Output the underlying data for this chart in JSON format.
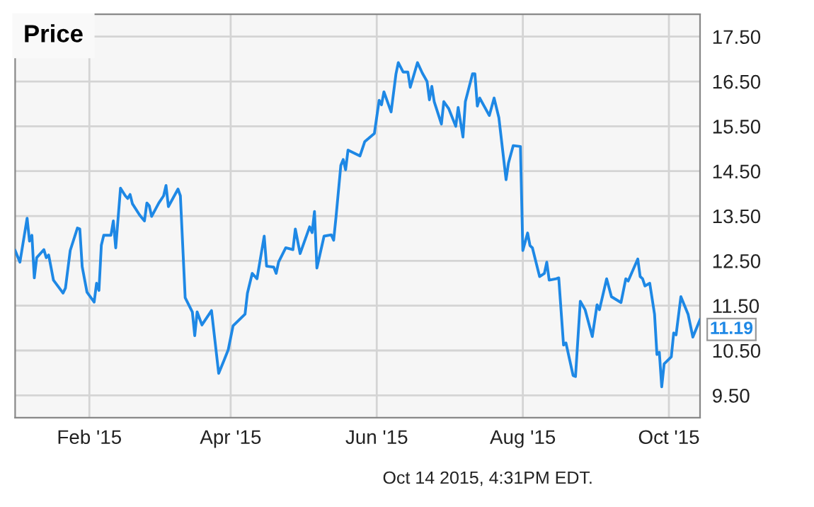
{
  "chart_data": {
    "type": "line",
    "title": "Price",
    "annotations": [
      "Oct 14 2015, 4:31PM EDT."
    ],
    "x": [
      "2015-01-01",
      "2015-01-03",
      "2015-01-06",
      "2015-01-07",
      "2015-01-08",
      "2015-01-09",
      "2015-01-10",
      "2015-01-13",
      "2015-01-14",
      "2015-01-15",
      "2015-01-17",
      "2015-01-21",
      "2015-01-22",
      "2015-01-24",
      "2015-01-27",
      "2015-01-28",
      "2015-01-29",
      "2015-01-31",
      "2015-02-03",
      "2015-02-04",
      "2015-02-05",
      "2015-02-06",
      "2015-02-07",
      "2015-02-10",
      "2015-02-11",
      "2015-02-12",
      "2015-02-14",
      "2015-02-16",
      "2015-02-17",
      "2015-02-18",
      "2015-02-19",
      "2015-02-22",
      "2015-02-24",
      "2015-02-25",
      "2015-02-26",
      "2015-02-27",
      "2015-03-02",
      "2015-03-04",
      "2015-03-05",
      "2015-03-06",
      "2015-03-10",
      "2015-03-11",
      "2015-03-13",
      "2015-03-16",
      "2015-03-17",
      "2015-03-18",
      "2015-03-20",
      "2015-03-24",
      "2015-03-27",
      "2015-03-29",
      "2015-03-31",
      "2015-04-02",
      "2015-04-07",
      "2015-04-08",
      "2015-04-10",
      "2015-04-12",
      "2015-04-15",
      "2015-04-16",
      "2015-04-19",
      "2015-04-20",
      "2015-04-21",
      "2015-04-24",
      "2015-04-27",
      "2015-04-28",
      "2015-04-30",
      "2015-05-04",
      "2015-05-05",
      "2015-05-06",
      "2015-05-07",
      "2015-05-10",
      "2015-05-13",
      "2015-05-14",
      "2015-05-15",
      "2015-05-17",
      "2015-05-18",
      "2015-05-19",
      "2015-05-20",
      "2015-05-25",
      "2015-05-27",
      "2015-05-31",
      "2015-06-02",
      "2015-06-03",
      "2015-06-04",
      "2015-06-07",
      "2015-06-09",
      "2015-06-10",
      "2015-06-12",
      "2015-06-14",
      "2015-06-15",
      "2015-06-18",
      "2015-06-20",
      "2015-06-22",
      "2015-06-23",
      "2015-06-24",
      "2015-06-25",
      "2015-06-28",
      "2015-06-29",
      "2015-07-01",
      "2015-07-04",
      "2015-07-05",
      "2015-07-07",
      "2015-07-08",
      "2015-07-11",
      "2015-07-12",
      "2015-07-13",
      "2015-07-14",
      "2015-07-18",
      "2015-07-20",
      "2015-07-22",
      "2015-07-25",
      "2015-07-26",
      "2015-07-28",
      "2015-07-31",
      "2015-08-01",
      "2015-08-03",
      "2015-08-04",
      "2015-08-05",
      "2015-08-08",
      "2015-08-10",
      "2015-08-11",
      "2015-08-12",
      "2015-08-15",
      "2015-08-16",
      "2015-08-18",
      "2015-08-19",
      "2015-08-22",
      "2015-08-23",
      "2015-08-25",
      "2015-08-27",
      "2015-08-30",
      "2015-09-01",
      "2015-09-02",
      "2015-09-05",
      "2015-09-07",
      "2015-09-11",
      "2015-09-13",
      "2015-09-14",
      "2015-09-18",
      "2015-09-19",
      "2015-09-20",
      "2015-09-21",
      "2015-09-23",
      "2015-09-25",
      "2015-09-26",
      "2015-09-27",
      "2015-09-28",
      "2015-09-29",
      "2015-10-02",
      "2015-10-03",
      "2015-10-04",
      "2015-10-06",
      "2015-10-09",
      "2015-10-11",
      "2015-10-14"
    ],
    "series": [
      {
        "color": "#1e88e5",
        "values": [
          12.73,
          12.47,
          13.45,
          12.94,
          13.07,
          12.12,
          12.57,
          12.75,
          12.57,
          12.63,
          12.07,
          11.78,
          11.89,
          12.73,
          13.23,
          13.21,
          12.37,
          11.8,
          11.58,
          12.0,
          11.84,
          12.85,
          13.07,
          13.07,
          13.39,
          12.79,
          14.12,
          13.95,
          13.89,
          13.98,
          13.77,
          13.52,
          13.39,
          13.79,
          13.73,
          13.49,
          13.79,
          13.95,
          14.18,
          13.71,
          14.1,
          13.95,
          11.68,
          11.36,
          10.83,
          11.36,
          11.07,
          11.39,
          9.99,
          10.25,
          10.52,
          11.05,
          11.31,
          11.78,
          12.22,
          12.1,
          13.05,
          12.38,
          12.36,
          12.22,
          12.47,
          12.79,
          12.75,
          13.21,
          12.66,
          13.26,
          13.13,
          13.6,
          12.34,
          13.05,
          13.08,
          12.96,
          13.48,
          14.63,
          14.76,
          14.53,
          14.97,
          14.84,
          15.16,
          15.34,
          16.08,
          15.98,
          16.27,
          15.82,
          16.66,
          16.92,
          16.71,
          16.71,
          16.37,
          16.92,
          16.69,
          16.5,
          16.09,
          16.39,
          16.05,
          15.55,
          16.05,
          15.9,
          15.5,
          15.92,
          15.26,
          16.05,
          16.67,
          16.67,
          15.95,
          16.13,
          15.74,
          16.13,
          15.69,
          14.31,
          14.68,
          15.07,
          15.05,
          12.73,
          13.12,
          12.84,
          12.79,
          12.15,
          12.22,
          12.47,
          12.07,
          12.1,
          12.12,
          10.62,
          10.67,
          9.94,
          9.92,
          11.6,
          11.41,
          10.81,
          11.52,
          11.41,
          12.1,
          11.7,
          11.57,
          12.1,
          12.05,
          12.54,
          12.15,
          12.1,
          11.94,
          12.0,
          11.31,
          10.41,
          10.46,
          9.69,
          10.2,
          10.36,
          10.89,
          10.85,
          11.7,
          11.31,
          10.8,
          11.19
        ],
        "value_labels": [
          null,
          null,
          null,
          null,
          null,
          null,
          null,
          null,
          null,
          null,
          null,
          null,
          null,
          null,
          null,
          null,
          null,
          null,
          null,
          null,
          null,
          null,
          null,
          null,
          null,
          null,
          null,
          null,
          null,
          null,
          null,
          null,
          null,
          null,
          null,
          null,
          null,
          null,
          null,
          null,
          null,
          null,
          null,
          null,
          null,
          null,
          null,
          null,
          null,
          null,
          null,
          null,
          null,
          null,
          null,
          null,
          null,
          null,
          null,
          null,
          null,
          null,
          null,
          null,
          null,
          null,
          null,
          null,
          null,
          null,
          null,
          null,
          null,
          null,
          null,
          null,
          null,
          null,
          null,
          null,
          null,
          null,
          null,
          null,
          null,
          null,
          null,
          null,
          null,
          null,
          null,
          null,
          null,
          null,
          null,
          null,
          null,
          null,
          null,
          null,
          null,
          null,
          null,
          null,
          null,
          null,
          null,
          null,
          null,
          null,
          null,
          null,
          null,
          null,
          null,
          null,
          null,
          null,
          null,
          null,
          null,
          null,
          null,
          null,
          null,
          null,
          null,
          null,
          null,
          null,
          null,
          null,
          null,
          null,
          null,
          null,
          null,
          null,
          null,
          null,
          null,
          null,
          null,
          null,
          null,
          null,
          null,
          null,
          null,
          null,
          null,
          null,
          null,
          "11.19"
        ]
      }
    ],
    "xlim": [
      "2015-01-01",
      "2015-10-14"
    ],
    "xticks": [
      {
        "value": "2015-02-01",
        "label": "Feb '15"
      },
      {
        "value": "2015-04-01",
        "label": "Apr '15"
      },
      {
        "value": "2015-06-01",
        "label": "Jun '15"
      },
      {
        "value": "2015-08-01",
        "label": "Aug '15"
      },
      {
        "value": "2015-10-01",
        "label": "Oct '15"
      }
    ],
    "ylim": [
      9.0,
      18.0
    ],
    "yticks": [
      {
        "value": 9.5,
        "label": "9.50"
      },
      {
        "value": 10.5,
        "label": "10.50"
      },
      {
        "value": 11.5,
        "label": "11.50"
      },
      {
        "value": 12.5,
        "label": "12.50"
      },
      {
        "value": 13.5,
        "label": "13.50"
      },
      {
        "value": 14.5,
        "label": "14.50"
      },
      {
        "value": 15.5,
        "label": "15.50"
      },
      {
        "value": 16.5,
        "label": "16.50"
      },
      {
        "value": 17.5,
        "label": "17.50"
      }
    ],
    "grid": true,
    "marker": "none",
    "line_style": "solid"
  }
}
